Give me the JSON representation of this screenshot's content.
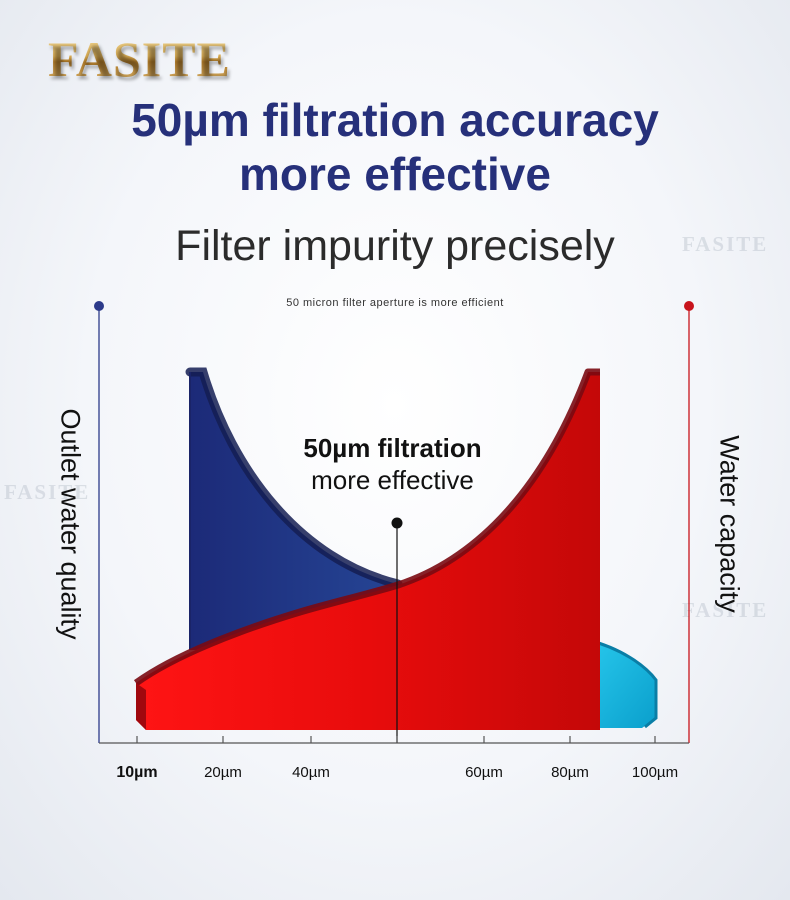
{
  "brand": "FASITE",
  "headline": {
    "line1": "50µm filtration accuracy",
    "line2": "more effective"
  },
  "subheadline": "Filter impurity precisely",
  "tagline": "50 micron filter aperture is more efficient",
  "watermark": "FASITE",
  "chart_data": {
    "type": "area",
    "x_axis_ticks": [
      "10µm",
      "20µm",
      "40µm",
      "60µm",
      "80µm",
      "100µm"
    ],
    "left_axis_label": "Outlet water quality",
    "right_axis_label": "Water capacity",
    "annotation": {
      "title": "50µm filtration",
      "subtitle": "more effective",
      "x": "50µm"
    },
    "series": [
      {
        "name": "Outlet water quality",
        "trend": "decreasing",
        "color": "#2a3a8c"
      },
      {
        "name": "Water capacity",
        "trend": "increasing",
        "color": "#e01010"
      }
    ],
    "colors": {
      "left_axis": "#2c3a8a",
      "right_axis": "#c8141c",
      "quality_fill": "#2a3a8c",
      "capacity_fill": "#e01010",
      "accent_cyan": "#12b6dc"
    }
  }
}
